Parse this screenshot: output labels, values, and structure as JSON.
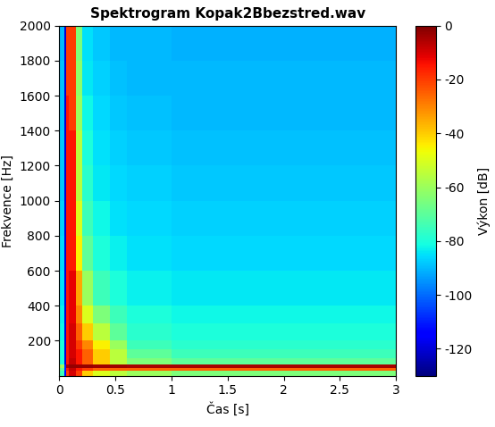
{
  "chart_data": {
    "type": "heatmap",
    "title": "Spektrogram Kopak2Bbezstred.wav",
    "x_label": "Čas [s]",
    "y_label": "Frekvence [Hz]",
    "xlim": [
      0,
      3
    ],
    "ylim": [
      0,
      2000
    ],
    "xticks": [
      0,
      0.5,
      1,
      1.5,
      2,
      2.5,
      3
    ],
    "yticks": [
      200,
      400,
      600,
      800,
      1000,
      1200,
      1400,
      1600,
      1800,
      2000
    ],
    "grid": false,
    "x_edges": [
      0,
      0.04,
      0.06,
      0.08,
      0.15,
      0.2,
      0.3,
      0.45,
      0.6,
      1.0,
      1.5,
      2.0,
      2.5,
      3.0
    ],
    "y_edges": [
      0,
      30,
      45,
      65,
      100,
      150,
      200,
      300,
      400,
      600,
      800,
      1000,
      1200,
      1400,
      1600,
      1800,
      2000
    ],
    "cells": [
      [
        -75,
        -115,
        -20,
        -10,
        -20,
        -40,
        -50,
        -55,
        -60,
        -65,
        -65,
        -65,
        -65
      ],
      [
        -70,
        -110,
        -15,
        -8,
        -15,
        -20,
        -25,
        -25,
        -25,
        -25,
        -25,
        -25,
        -25
      ],
      [
        -60,
        -110,
        -5,
        -3,
        -3,
        -3,
        -4,
        -4,
        -5,
        -5,
        -5,
        -5,
        -5
      ],
      [
        -80,
        -120,
        -15,
        -8,
        -15,
        -25,
        -40,
        -55,
        -65,
        -70,
        -70,
        -70,
        -70
      ],
      [
        -80,
        -120,
        -15,
        -10,
        -15,
        -25,
        -40,
        -55,
        -70,
        -75,
        -75,
        -75,
        -75
      ],
      [
        -80,
        -120,
        -15,
        -10,
        -20,
        -30,
        -45,
        -60,
        -75,
        -78,
        -78,
        -78,
        -78
      ],
      [
        -82,
        -120,
        -15,
        -10,
        -25,
        -40,
        -55,
        -70,
        -78,
        -80,
        -80,
        -80,
        -80
      ],
      [
        -83,
        -120,
        -15,
        -12,
        -30,
        -50,
        -65,
        -75,
        -80,
        -82,
        -82,
        -82,
        -82
      ],
      [
        -85,
        -120,
        -15,
        -12,
        -35,
        -60,
        -75,
        -80,
        -83,
        -84,
        -84,
        -84,
        -84
      ],
      [
        -86,
        -120,
        -15,
        -15,
        -45,
        -70,
        -80,
        -83,
        -85,
        -86,
        -86,
        -86,
        -86
      ],
      [
        -87,
        -120,
        -15,
        -15,
        -50,
        -75,
        -82,
        -85,
        -86,
        -87,
        -87,
        -87,
        -87
      ],
      [
        -88,
        -120,
        -15,
        -15,
        -55,
        -78,
        -84,
        -86,
        -87,
        -88,
        -88,
        -88,
        -88
      ],
      [
        -88,
        -120,
        -15,
        -15,
        -55,
        -80,
        -85,
        -87,
        -88,
        -89,
        -89,
        -89,
        -89
      ],
      [
        -89,
        -120,
        -15,
        -20,
        -60,
        -82,
        -86,
        -88,
        -89,
        -90,
        -90,
        -90,
        -90
      ],
      [
        -89,
        -120,
        -20,
        -20,
        -62,
        -84,
        -87,
        -89,
        -90,
        -90,
        -90,
        -90,
        -90
      ],
      [
        -90,
        -120,
        -20,
        -20,
        -65,
        -85,
        -88,
        -90,
        -90,
        -91,
        -91,
        -91,
        -91
      ]
    ],
    "color_range": [
      -130,
      0
    ],
    "color_ticks": [
      -120,
      -100,
      -80,
      -60,
      -40,
      -20,
      0
    ],
    "colorbar_label": "Výkon [dB]"
  }
}
